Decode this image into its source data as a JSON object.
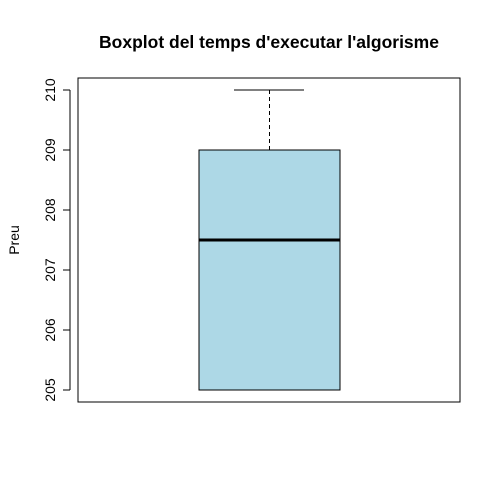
{
  "chart_data": {
    "type": "boxplot",
    "title": "Boxplot del temps d'executar l'algorisme",
    "xlabel": "",
    "ylabel": "Preu",
    "ylim": [
      204.8,
      210.2
    ],
    "yticks": [
      205,
      206,
      207,
      208,
      209,
      210
    ],
    "ytick_labels": [
      "205",
      "206",
      "207",
      "208",
      "209",
      "210"
    ],
    "box": {
      "min": 205,
      "q1": 205,
      "median": 207.5,
      "q3": 209,
      "max": 210
    },
    "colors": {
      "box_fill": "#add8e6",
      "stroke": "#000000"
    }
  }
}
